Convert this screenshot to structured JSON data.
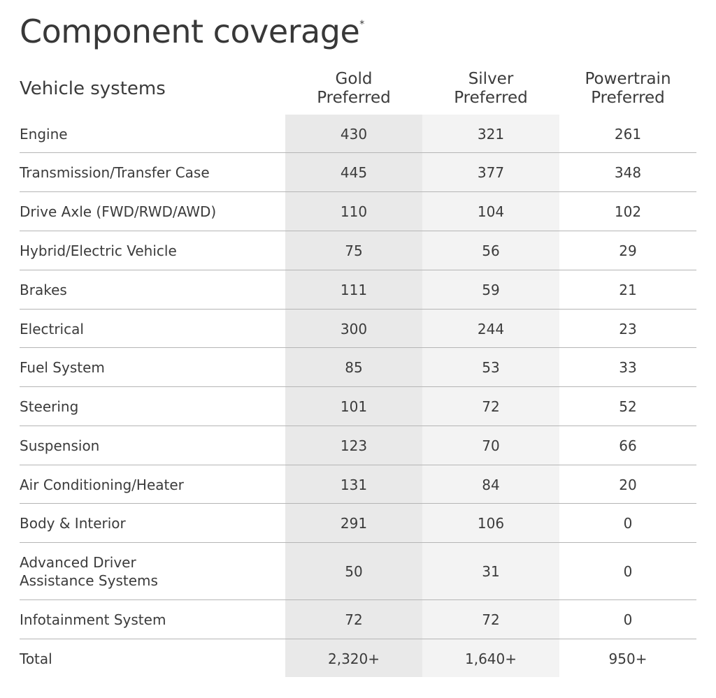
{
  "title": "Component coverage",
  "title_mark": "*",
  "header": {
    "systems_label": "Vehicle systems",
    "tiers": [
      {
        "line1": "Gold",
        "line2": "Preferred"
      },
      {
        "line1": "Silver",
        "line2": "Preferred"
      },
      {
        "line1": "Powertrain",
        "line2": "Preferred"
      }
    ]
  },
  "rows": [
    {
      "name": "Engine",
      "gold": "430",
      "silver": "321",
      "powertrain": "261"
    },
    {
      "name": "Transmission/Transfer Case",
      "gold": "445",
      "silver": "377",
      "powertrain": "348"
    },
    {
      "name": "Drive Axle (FWD/RWD/AWD)",
      "gold": "110",
      "silver": "104",
      "powertrain": "102"
    },
    {
      "name": "Hybrid/Electric Vehicle",
      "gold": "75",
      "silver": "56",
      "powertrain": "29"
    },
    {
      "name": "Brakes",
      "gold": "111",
      "silver": "59",
      "powertrain": "21"
    },
    {
      "name": "Electrical",
      "gold": "300",
      "silver": "244",
      "powertrain": "23"
    },
    {
      "name": "Fuel System",
      "gold": "85",
      "silver": "53",
      "powertrain": "33"
    },
    {
      "name": "Steering",
      "gold": "101",
      "silver": "72",
      "powertrain": "52"
    },
    {
      "name": "Suspension",
      "gold": "123",
      "silver": "70",
      "powertrain": "66"
    },
    {
      "name": "Air Conditioning/Heater",
      "gold": "131",
      "silver": "84",
      "powertrain": "20"
    },
    {
      "name": "Body & Interior",
      "gold": "291",
      "silver": "106",
      "powertrain": "0"
    },
    {
      "name": "Advanced Driver Assistance Systems",
      "gold": "50",
      "silver": "31",
      "powertrain": "0"
    },
    {
      "name": "Infotainment System",
      "gold": "72",
      "silver": "72",
      "powertrain": "0"
    },
    {
      "name": "Total",
      "gold": "2,320+",
      "silver": "1,640+",
      "powertrain": "950+"
    }
  ],
  "colors": {
    "gold_column": "#e9e9e9",
    "silver_column": "#f3f3f3",
    "divider": "#b5b5b5",
    "text": "#3b3b3b"
  }
}
